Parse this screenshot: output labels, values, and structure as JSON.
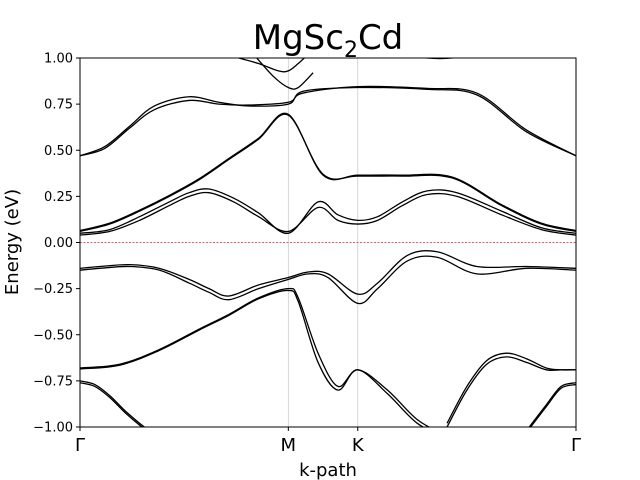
{
  "chart_data": {
    "type": "line",
    "title": "MgSc",
    "title_subscript": "2",
    "title_suffix": "Cd",
    "xlabel": "k-path",
    "ylabel": "Energy (eV)",
    "ylim": [
      -1.0,
      1.0
    ],
    "xlim": [
      0,
      1
    ],
    "yticks": [
      -1.0,
      -0.75,
      -0.5,
      -0.25,
      0.0,
      0.25,
      0.5,
      0.75,
      1.0
    ],
    "ytick_labels": [
      "−1.00",
      "−0.75",
      "−0.50",
      "−0.25",
      "0.00",
      "0.25",
      "0.50",
      "0.75",
      "1.00"
    ],
    "kpoints": [
      {
        "label": "Γ",
        "x": 0.0
      },
      {
        "label": "M",
        "x": 0.42
      },
      {
        "label": "K",
        "x": 0.56
      },
      {
        "label": "Γ",
        "x": 1.0
      }
    ],
    "fermi_level": 0.0,
    "fermi_color": "#d62728",
    "band_color": "#000000",
    "grid": "vertical lines at high-symmetry points",
    "series": [
      {
        "x": [
          0.0,
          0.06,
          0.12,
          0.18,
          0.24,
          0.3,
          0.36,
          0.42,
          0.49,
          0.56,
          0.65,
          0.75,
          0.85,
          0.93,
          1.0
        ],
        "y": [
          0.06,
          0.1,
          0.17,
          0.25,
          0.34,
          0.45,
          0.56,
          0.69,
          0.37,
          0.36,
          0.36,
          0.35,
          0.2,
          0.1,
          0.06
        ]
      },
      {
        "x": [
          0.0,
          0.06,
          0.12,
          0.18,
          0.24,
          0.3,
          0.36,
          0.42,
          0.49,
          0.56,
          0.65,
          0.75,
          0.85,
          0.93,
          1.0
        ],
        "y": [
          0.065,
          0.105,
          0.175,
          0.255,
          0.345,
          0.455,
          0.565,
          0.695,
          0.365,
          0.365,
          0.365,
          0.355,
          0.205,
          0.105,
          0.065
        ]
      },
      {
        "x": [
          0.0,
          0.06,
          0.12,
          0.18,
          0.22,
          0.26,
          0.31,
          0.36,
          0.42,
          0.48,
          0.52,
          0.56,
          0.6,
          0.65,
          0.7,
          0.76,
          0.85,
          0.93,
          1.0
        ],
        "y": [
          0.05,
          0.07,
          0.14,
          0.22,
          0.27,
          0.29,
          0.24,
          0.16,
          0.05,
          0.22,
          0.15,
          0.12,
          0.14,
          0.22,
          0.28,
          0.27,
          0.17,
          0.08,
          0.05
        ]
      },
      {
        "x": [
          0.0,
          0.06,
          0.12,
          0.18,
          0.22,
          0.26,
          0.31,
          0.36,
          0.42,
          0.48,
          0.52,
          0.56,
          0.6,
          0.65,
          0.7,
          0.76,
          0.85,
          0.93,
          1.0
        ],
        "y": [
          0.04,
          0.06,
          0.12,
          0.2,
          0.25,
          0.27,
          0.22,
          0.14,
          0.06,
          0.19,
          0.12,
          0.1,
          0.12,
          0.2,
          0.26,
          0.25,
          0.15,
          0.07,
          0.04
        ]
      },
      {
        "x": [
          0.0,
          0.05,
          0.1,
          0.15,
          0.22,
          0.28,
          0.34,
          0.42,
          0.45,
          0.56,
          0.7,
          0.8,
          0.9,
          1.0
        ],
        "y": [
          0.47,
          0.52,
          0.63,
          0.74,
          0.79,
          0.76,
          0.74,
          0.75,
          0.82,
          0.84,
          0.83,
          0.8,
          0.6,
          0.47
        ]
      },
      {
        "x": [
          0.0,
          0.05,
          0.1,
          0.15,
          0.22,
          0.28,
          0.34,
          0.42,
          0.45,
          0.56,
          0.7,
          0.8,
          0.9,
          1.0
        ],
        "y": [
          0.47,
          0.51,
          0.62,
          0.72,
          0.77,
          0.75,
          0.745,
          0.76,
          0.81,
          0.845,
          0.835,
          0.81,
          0.61,
          0.47
        ]
      },
      {
        "x": [
          0.32,
          0.36,
          0.4,
          0.42,
          0.44,
          0.46
        ],
        "y": [
          1.0,
          0.97,
          0.93,
          0.93,
          0.97,
          1.02
        ]
      },
      {
        "x": [
          0.35,
          0.39,
          0.42,
          0.44,
          0.47
        ],
        "y": [
          1.02,
          0.9,
          0.84,
          0.84,
          0.92
        ]
      },
      {
        "x": [
          0.0,
          0.04,
          0.1,
          0.16,
          0.22,
          0.26,
          0.3,
          0.36,
          0.42,
          0.46,
          0.5,
          0.56,
          0.6,
          0.66,
          0.72,
          0.8,
          0.9,
          1.0
        ],
        "y": [
          -0.14,
          -0.13,
          -0.12,
          -0.14,
          -0.2,
          -0.25,
          -0.29,
          -0.23,
          -0.19,
          -0.16,
          -0.17,
          -0.28,
          -0.22,
          -0.07,
          -0.05,
          -0.13,
          -0.13,
          -0.14
        ]
      },
      {
        "x": [
          0.0,
          0.04,
          0.1,
          0.16,
          0.22,
          0.26,
          0.3,
          0.36,
          0.42,
          0.46,
          0.5,
          0.56,
          0.6,
          0.66,
          0.72,
          0.8,
          0.9,
          1.0
        ],
        "y": [
          -0.15,
          -0.14,
          -0.13,
          -0.15,
          -0.22,
          -0.27,
          -0.31,
          -0.25,
          -0.2,
          -0.17,
          -0.19,
          -0.33,
          -0.25,
          -0.1,
          -0.08,
          -0.17,
          -0.14,
          -0.15
        ]
      },
      {
        "x": [
          0.0,
          0.08,
          0.16,
          0.24,
          0.3,
          0.36,
          0.42,
          0.44,
          0.48,
          0.52,
          0.56,
          0.62,
          0.68,
          0.74
        ],
        "y": [
          -0.68,
          -0.66,
          -0.58,
          -0.47,
          -0.39,
          -0.3,
          -0.25,
          -0.3,
          -0.6,
          -0.78,
          -0.69,
          -0.8,
          -0.96,
          -1.05
        ]
      },
      {
        "x": [
          0.0,
          0.08,
          0.16,
          0.24,
          0.3,
          0.36,
          0.42,
          0.44,
          0.48,
          0.52,
          0.56,
          0.62,
          0.68,
          0.74
        ],
        "y": [
          -0.685,
          -0.665,
          -0.585,
          -0.475,
          -0.395,
          -0.305,
          -0.26,
          -0.32,
          -0.65,
          -0.8,
          -0.69,
          -0.82,
          -0.98,
          -1.06
        ]
      },
      {
        "x": [
          0.0,
          0.03,
          0.06,
          0.09,
          0.12,
          0.14
        ],
        "y": [
          -0.75,
          -0.77,
          -0.83,
          -0.91,
          -0.98,
          -1.02
        ]
      },
      {
        "x": [
          0.0,
          0.03,
          0.06,
          0.09,
          0.12,
          0.14
        ],
        "y": [
          -0.76,
          -0.78,
          -0.84,
          -0.92,
          -0.99,
          -1.03
        ]
      },
      {
        "x": [
          0.74,
          0.78,
          0.82,
          0.86,
          0.9,
          0.94,
          0.97,
          1.0
        ],
        "y": [
          -0.98,
          -0.78,
          -0.64,
          -0.6,
          -0.63,
          -0.68,
          -0.69,
          -0.69
        ]
      },
      {
        "x": [
          0.74,
          0.78,
          0.82,
          0.86,
          0.9,
          0.94,
          0.97,
          1.0
        ],
        "y": [
          -1.0,
          -0.8,
          -0.66,
          -0.62,
          -0.65,
          -0.69,
          -0.69,
          -0.69
        ]
      },
      {
        "x": [
          0.9,
          0.94,
          0.97,
          1.0
        ],
        "y": [
          -1.02,
          -0.88,
          -0.78,
          -0.76
        ]
      },
      {
        "x": [
          0.9,
          0.94,
          0.97,
          1.0
        ],
        "y": [
          -1.03,
          -0.89,
          -0.79,
          -0.77
        ]
      },
      {
        "x": [
          0.66,
          0.7,
          0.75,
          0.78
        ],
        "y": [
          1.02,
          1.0,
          1.0,
          1.02
        ]
      }
    ]
  }
}
